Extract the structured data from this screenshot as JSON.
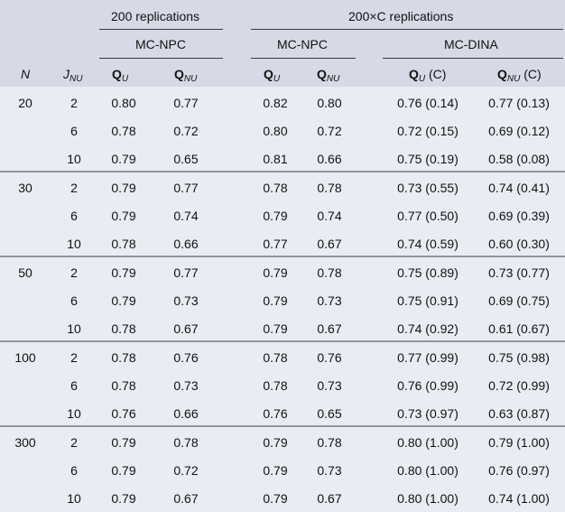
{
  "header": {
    "group_200": "200 replications",
    "group_200C": "200×C replications",
    "method_npc": "MC-NPC",
    "method_npc2": "MC-NPC",
    "method_dina": "MC-DINA",
    "col_n": "N",
    "col_j": {
      "base": "J",
      "sub": "NU"
    },
    "col_qu_1": {
      "base": "Q",
      "sub": "U"
    },
    "col_qnu_1": {
      "base": "Q",
      "sub": "NU"
    },
    "col_qu_2": {
      "base": "Q",
      "sub": "U"
    },
    "col_qnu_2": {
      "base": "Q",
      "sub": "NU"
    },
    "col_qu_3": {
      "base": "Q",
      "sub": "U",
      "suffix": " (C)"
    },
    "col_qnu_3": {
      "base": "Q",
      "sub": "NU",
      "suffix": " (C)"
    }
  },
  "groups": [
    {
      "n": "20",
      "rows": [
        {
          "j": "2",
          "qu1": "0.80",
          "qnu1": "0.77",
          "qu2": "0.82",
          "qnu2": "0.80",
          "qu3": "0.76 (0.14)",
          "qnu3": "0.77 (0.13)"
        },
        {
          "j": "6",
          "qu1": "0.78",
          "qnu1": "0.72",
          "qu2": "0.80",
          "qnu2": "0.72",
          "qu3": "0.72 (0.15)",
          "qnu3": "0.69 (0.12)"
        },
        {
          "j": "10",
          "qu1": "0.79",
          "qnu1": "0.65",
          "qu2": "0.81",
          "qnu2": "0.66",
          "qu3": "0.75 (0.19)",
          "qnu3": "0.58 (0.08)"
        }
      ]
    },
    {
      "n": "30",
      "rows": [
        {
          "j": "2",
          "qu1": "0.79",
          "qnu1": "0.77",
          "qu2": "0.78",
          "qnu2": "0.78",
          "qu3": "0.73 (0.55)",
          "qnu3": "0.74 (0.41)"
        },
        {
          "j": "6",
          "qu1": "0.79",
          "qnu1": "0.74",
          "qu2": "0.79",
          "qnu2": "0.74",
          "qu3": "0.77 (0.50)",
          "qnu3": "0.69 (0.39)"
        },
        {
          "j": "10",
          "qu1": "0.78",
          "qnu1": "0.66",
          "qu2": "0.77",
          "qnu2": "0.67",
          "qu3": "0.74 (0.59)",
          "qnu3": "0.60 (0.30)"
        }
      ]
    },
    {
      "n": "50",
      "rows": [
        {
          "j": "2",
          "qu1": "0.79",
          "qnu1": "0.77",
          "qu2": "0.79",
          "qnu2": "0.78",
          "qu3": "0.75 (0.89)",
          "qnu3": "0.73 (0.77)"
        },
        {
          "j": "6",
          "qu1": "0.79",
          "qnu1": "0.73",
          "qu2": "0.79",
          "qnu2": "0.73",
          "qu3": "0.75 (0.91)",
          "qnu3": "0.69 (0.75)"
        },
        {
          "j": "10",
          "qu1": "0.78",
          "qnu1": "0.67",
          "qu2": "0.79",
          "qnu2": "0.67",
          "qu3": "0.74 (0.92)",
          "qnu3": "0.61 (0.67)"
        }
      ]
    },
    {
      "n": "100",
      "rows": [
        {
          "j": "2",
          "qu1": "0.78",
          "qnu1": "0.76",
          "qu2": "0.78",
          "qnu2": "0.76",
          "qu3": "0.77 (0.99)",
          "qnu3": "0.75 (0.98)"
        },
        {
          "j": "6",
          "qu1": "0.78",
          "qnu1": "0.73",
          "qu2": "0.78",
          "qnu2": "0.73",
          "qu3": "0.76 (0.99)",
          "qnu3": "0.72 (0.99)"
        },
        {
          "j": "10",
          "qu1": "0.76",
          "qnu1": "0.66",
          "qu2": "0.76",
          "qnu2": "0.65",
          "qu3": "0.73 (0.97)",
          "qnu3": "0.63 (0.87)"
        }
      ]
    },
    {
      "n": "300",
      "rows": [
        {
          "j": "2",
          "qu1": "0.79",
          "qnu1": "0.78",
          "qu2": "0.79",
          "qnu2": "0.78",
          "qu3": "0.80 (1.00)",
          "qnu3": "0.79 (1.00)"
        },
        {
          "j": "6",
          "qu1": "0.79",
          "qnu1": "0.72",
          "qu2": "0.79",
          "qnu2": "0.73",
          "qu3": "0.80 (1.00)",
          "qnu3": "0.76 (0.97)"
        },
        {
          "j": "10",
          "qu1": "0.79",
          "qnu1": "0.67",
          "qu2": "0.79",
          "qnu2": "0.67",
          "qu3": "0.80 (1.00)",
          "qnu3": "0.74 (1.00)"
        }
      ]
    }
  ]
}
